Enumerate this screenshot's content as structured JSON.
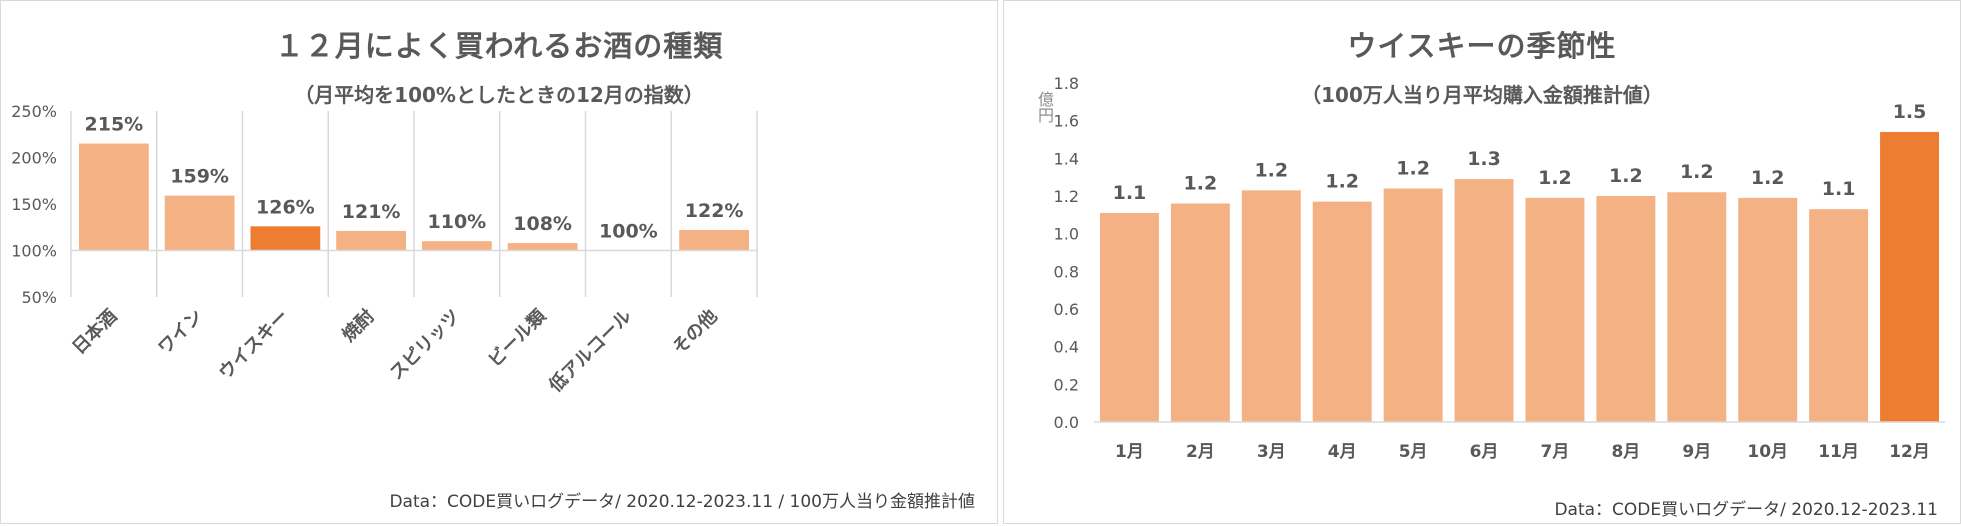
{
  "colors": {
    "bar": "#f4b183",
    "highlight": "#ed7d31",
    "grid": "#d9d9d9",
    "text": "#595959"
  },
  "chart_data": [
    {
      "type": "bar",
      "title": "１２月によく買われるお酒の種類",
      "subtitle": "（月平均を100%としたときの12月の指数）",
      "categories": [
        "日本酒",
        "ワイン",
        "ウイスキー",
        "焼酎",
        "スピリッツ",
        "ビール類",
        "低アルコール",
        "その他"
      ],
      "values": [
        215,
        159,
        126,
        121,
        110,
        108,
        100,
        122
      ],
      "data_labels": [
        "215%",
        "159%",
        "126%",
        "121%",
        "110%",
        "108%",
        "100%",
        "122%"
      ],
      "highlight_index": 2,
      "baseline": 100,
      "ylim": [
        50,
        250
      ],
      "yticks": [
        "50%",
        "100%",
        "150%",
        "200%",
        "250%"
      ],
      "grid": "vertical category separators",
      "legend": "none",
      "source": "Data：CODE買いログデータ/  2020.12-2023.11 / 100万人当り金額推計値"
    },
    {
      "type": "bar",
      "title": "ウイスキーの季節性",
      "subtitle": "（100万人当り月平均購入金額推計値）",
      "ylabel": "億円",
      "categories": [
        "1月",
        "2月",
        "3月",
        "4月",
        "5月",
        "6月",
        "7月",
        "8月",
        "9月",
        "10月",
        "11月",
        "12月"
      ],
      "values": [
        1.11,
        1.16,
        1.23,
        1.17,
        1.24,
        1.29,
        1.19,
        1.2,
        1.22,
        1.19,
        1.13,
        1.54
      ],
      "data_labels": [
        "1.1",
        "1.2",
        "1.2",
        "1.2",
        "1.2",
        "1.3",
        "1.2",
        "1.2",
        "1.2",
        "1.2",
        "1.1",
        "1.5"
      ],
      "highlight_index": 11,
      "ylim": [
        0,
        1.8
      ],
      "yticks": [
        "0.0",
        "0.2",
        "0.4",
        "0.6",
        "0.8",
        "1.0",
        "1.2",
        "1.4",
        "1.6",
        "1.8"
      ],
      "grid": "off",
      "legend": "none",
      "source": "Data：CODE買いログデータ/ 2020.12-2023.11"
    }
  ]
}
